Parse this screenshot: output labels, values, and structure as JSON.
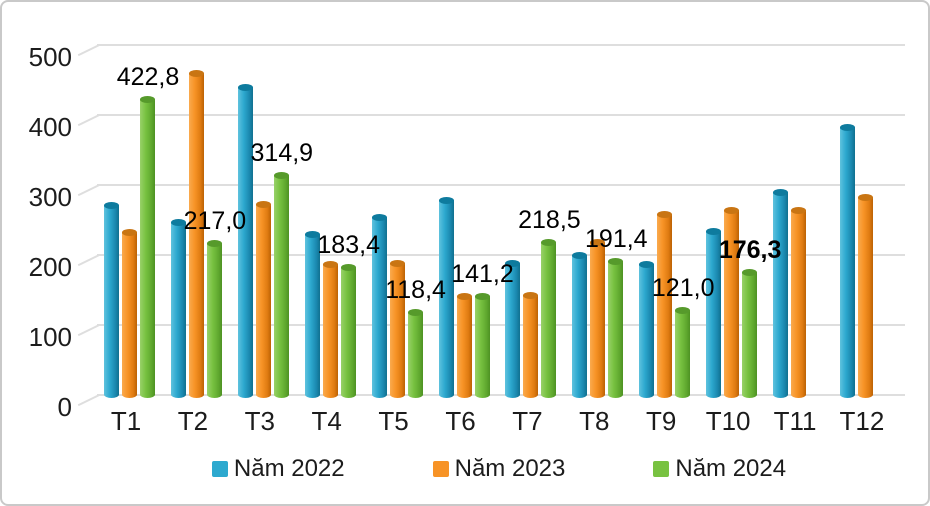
{
  "chart_data": {
    "type": "bar",
    "style": "3d-cylinder",
    "title": "",
    "xlabel": "",
    "ylabel": "",
    "categories": [
      "T1",
      "T2",
      "T3",
      "T4",
      "T5",
      "T6",
      "T7",
      "T8",
      "T9",
      "T10",
      "T11",
      "T12"
    ],
    "series": [
      {
        "name": "Năm 2022",
        "color": "#2da9cf",
        "values": [
          271,
          247,
          440,
          230,
          254,
          279,
          188,
          200,
          187,
          234,
          290,
          383
        ]
      },
      {
        "name": "Năm 2023",
        "color": "#f79326",
        "values": [
          233,
          460,
          273,
          187,
          189,
          142,
          143,
          218,
          259,
          264,
          264,
          283
        ]
      },
      {
        "name": "Năm 2024",
        "color": "#78c241",
        "values": [
          422.8,
          217.0,
          314.9,
          183.4,
          118.4,
          141.2,
          218.5,
          191.4,
          121.0,
          176.3,
          null,
          null
        ],
        "data_labels": [
          {
            "text": "422,8",
            "bold": false
          },
          {
            "text": "217,0",
            "bold": false
          },
          {
            "text": "314,9",
            "bold": false
          },
          {
            "text": "183,4",
            "bold": false
          },
          {
            "text": "118,4",
            "bold": false
          },
          {
            "text": "141,2",
            "bold": false
          },
          {
            "text": "218,5",
            "bold": false
          },
          {
            "text": "191,4",
            "bold": false
          },
          {
            "text": "121,0",
            "bold": false
          },
          {
            "text": "176,3",
            "bold": true
          },
          null,
          null
        ]
      }
    ],
    "ylim": [
      0,
      500
    ],
    "ytick_step": 100,
    "yticks": [
      "0",
      "100",
      "200",
      "300",
      "400",
      "500"
    ],
    "grid": true,
    "legend_position": "bottom",
    "decimal_separator": ",",
    "colors": {
      "gridline": "#dedede",
      "frame_border": "#c9c9c9",
      "text": "#1c1c1c",
      "data_label": "#000000"
    }
  }
}
